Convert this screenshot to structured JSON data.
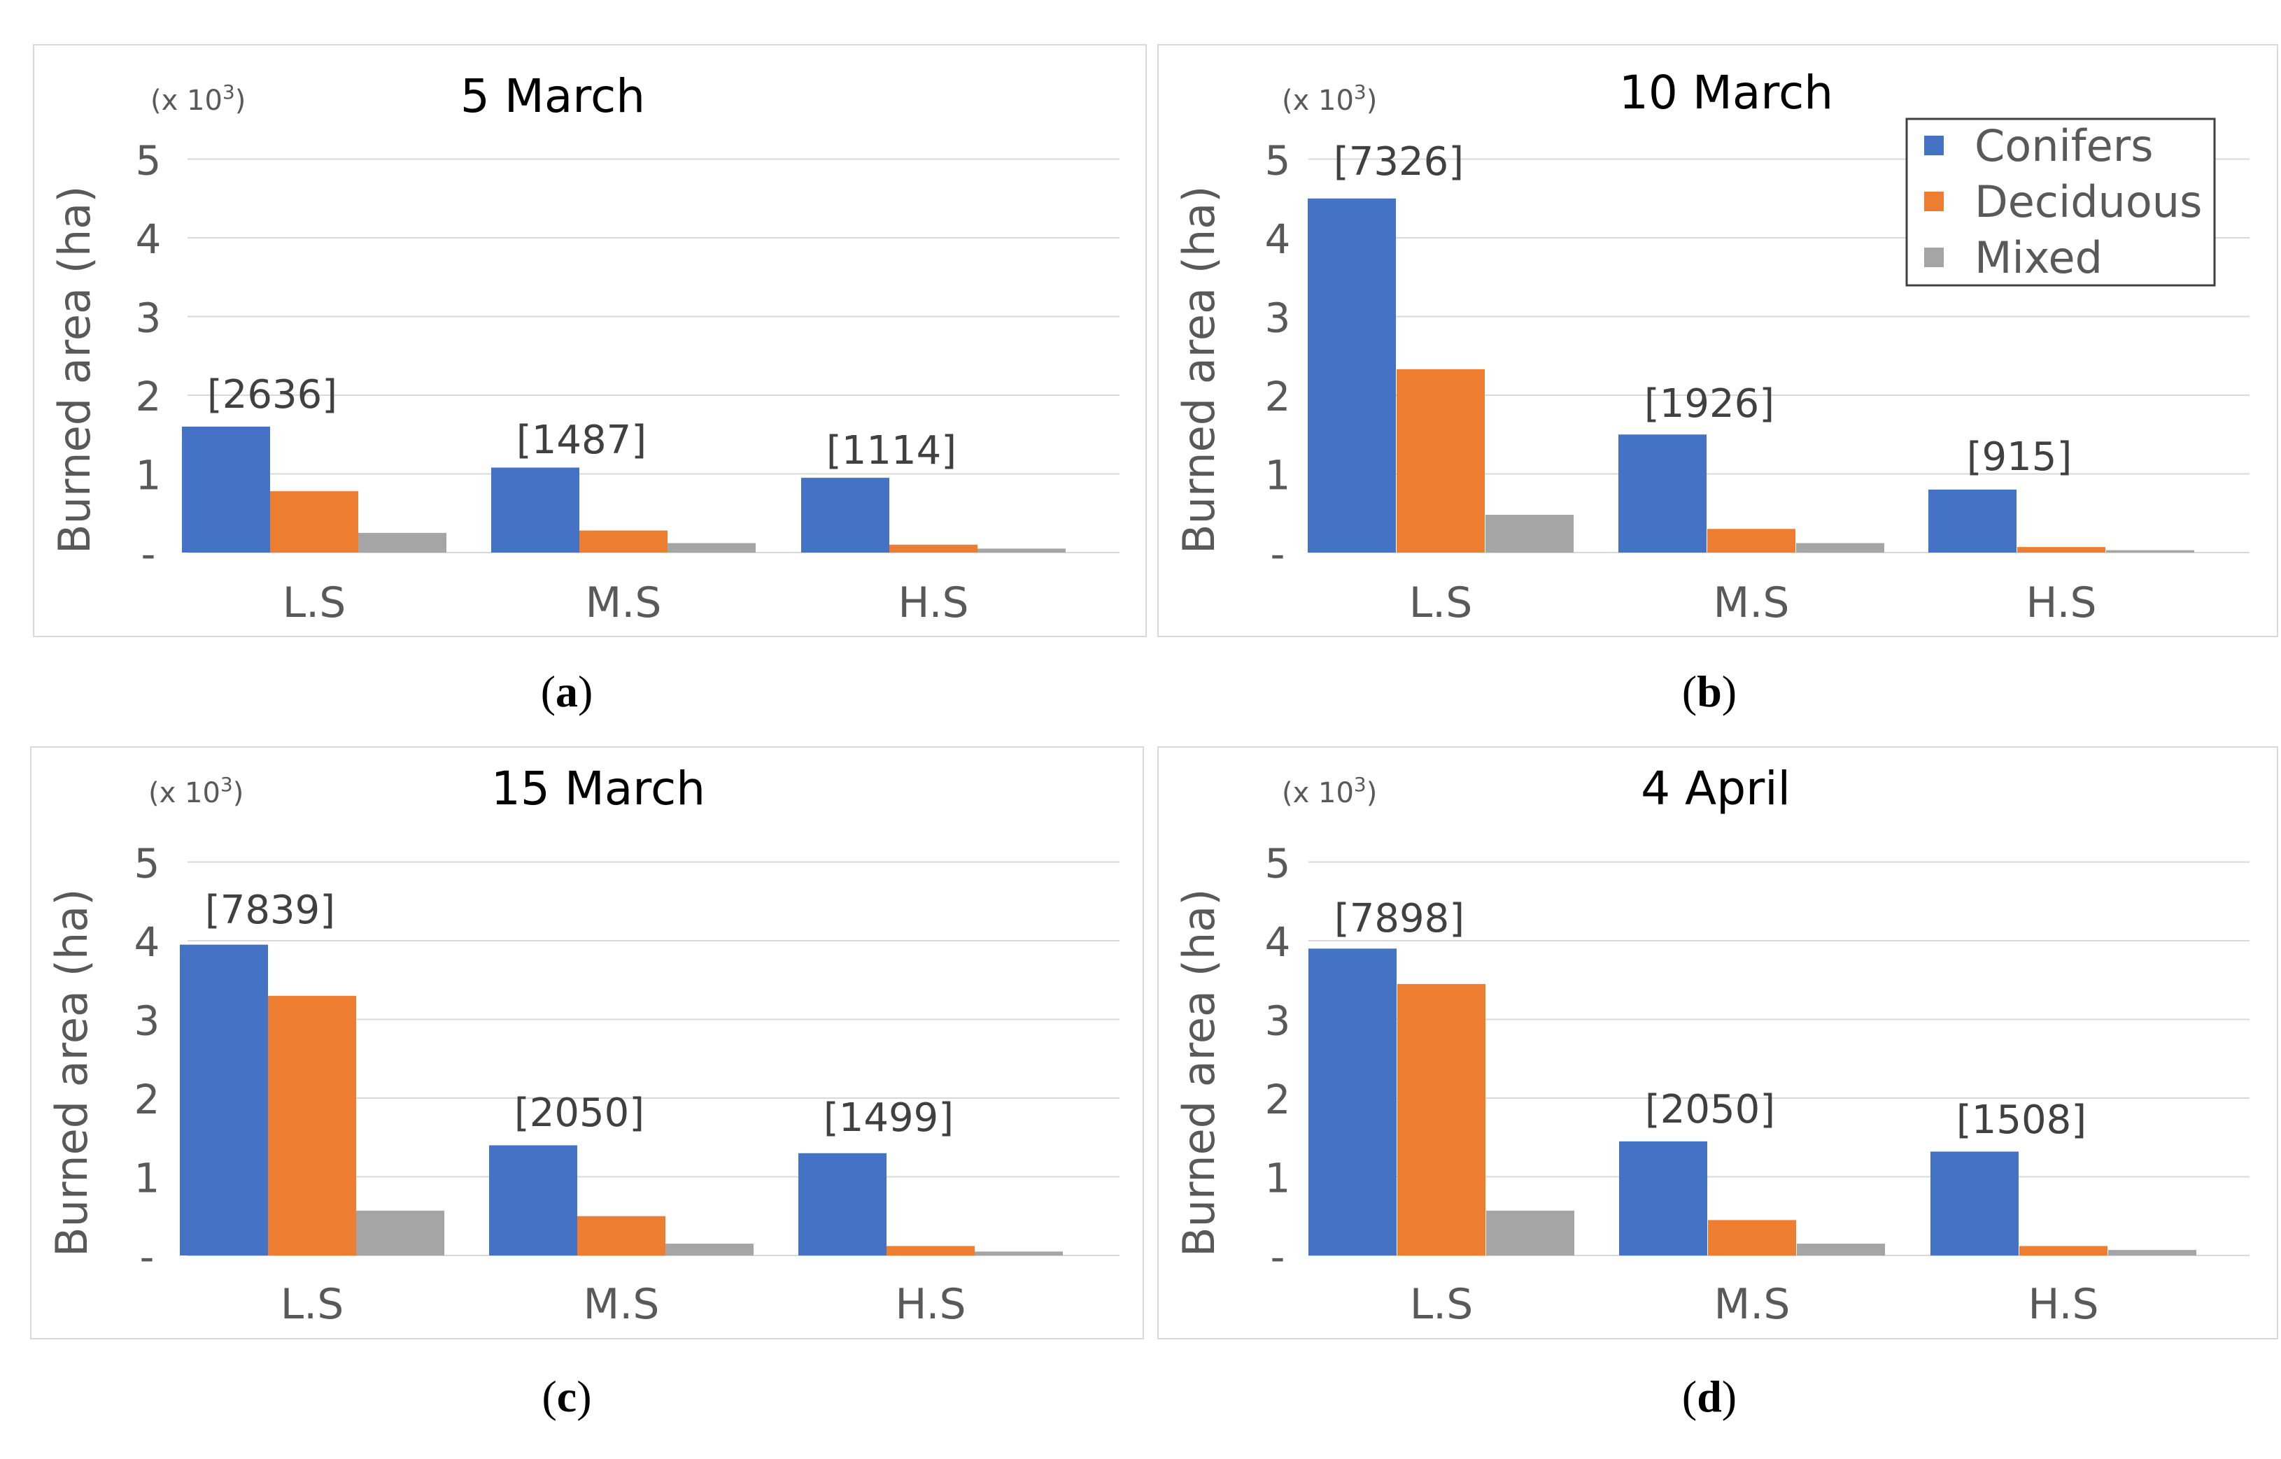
{
  "legend": {
    "entries": [
      {
        "name": "Conifers",
        "color": "#4472C4"
      },
      {
        "name": "Deciduous",
        "color": "#ED7D31"
      },
      {
        "name": "Mixed",
        "color": "#A5A5A5"
      }
    ]
  },
  "chart_data": [
    {
      "type": "bar",
      "panel_caption": "a",
      "title": "5 March",
      "unit_note": "(x 10",
      "unit_exp": "3",
      "unit_close": ")",
      "ylabel": "Burned area (ha)",
      "xlabel": "",
      "ylim": [
        0,
        5
      ],
      "yticks": [
        "-",
        "1",
        "2",
        "3",
        "4",
        "5"
      ],
      "categories": [
        "L.S",
        "M.S",
        "H.S"
      ],
      "series": [
        {
          "name": "Conifers",
          "values": [
            1.6,
            1.08,
            0.95
          ]
        },
        {
          "name": "Deciduous",
          "values": [
            0.78,
            0.28,
            0.1
          ]
        },
        {
          "name": "Mixed",
          "values": [
            0.25,
            0.12,
            0.05
          ]
        }
      ],
      "totals": [
        "[2636]",
        "[1487]",
        "[1114]"
      ],
      "legend_shown": false
    },
    {
      "type": "bar",
      "panel_caption": "b",
      "title": "10 March",
      "unit_note": "(x 10",
      "unit_exp": "3",
      "unit_close": ")",
      "ylabel": "Burned area (ha)",
      "xlabel": "",
      "ylim": [
        0,
        5
      ],
      "yticks": [
        "-",
        "1",
        "2",
        "3",
        "4",
        "5"
      ],
      "categories": [
        "L.S",
        "M.S",
        "H.S"
      ],
      "series": [
        {
          "name": "Conifers",
          "values": [
            4.5,
            1.5,
            0.8
          ]
        },
        {
          "name": "Deciduous",
          "values": [
            2.33,
            0.3,
            0.07
          ]
        },
        {
          "name": "Mixed",
          "values": [
            0.48,
            0.12,
            0.03
          ]
        }
      ],
      "totals": [
        "[7326]",
        "[1926]",
        "[915]"
      ],
      "legend_shown": true
    },
    {
      "type": "bar",
      "panel_caption": "c",
      "title": "15 March",
      "unit_note": "(x 10",
      "unit_exp": "3",
      "unit_close": ")",
      "ylabel": "Burned area (ha)",
      "xlabel": "",
      "ylim": [
        0,
        5
      ],
      "yticks": [
        "-",
        "1",
        "2",
        "3",
        "4",
        "5"
      ],
      "categories": [
        "L.S",
        "M.S",
        "H.S"
      ],
      "series": [
        {
          "name": "Conifers",
          "values": [
            3.95,
            1.4,
            1.3
          ]
        },
        {
          "name": "Deciduous",
          "values": [
            3.3,
            0.5,
            0.12
          ]
        },
        {
          "name": "Mixed",
          "values": [
            0.57,
            0.15,
            0.05
          ]
        }
      ],
      "totals": [
        "[7839]",
        "[2050]",
        "[1499]"
      ],
      "legend_shown": false
    },
    {
      "type": "bar",
      "panel_caption": "d",
      "title": "4 April",
      "unit_note": "(x 10",
      "unit_exp": "3",
      "unit_close": ")",
      "ylabel": "Burned area (ha)",
      "xlabel": "",
      "ylim": [
        0,
        5
      ],
      "yticks": [
        "-",
        "1",
        "2",
        "3",
        "4",
        "5"
      ],
      "categories": [
        "L.S",
        "M.S",
        "H.S"
      ],
      "series": [
        {
          "name": "Conifers",
          "values": [
            3.9,
            1.45,
            1.32
          ]
        },
        {
          "name": "Deciduous",
          "values": [
            3.45,
            0.45,
            0.12
          ]
        },
        {
          "name": "Mixed",
          "values": [
            0.57,
            0.15,
            0.07
          ]
        }
      ],
      "totals": [
        "[7898]",
        "[2050]",
        "[1508]"
      ],
      "legend_shown": false
    }
  ]
}
